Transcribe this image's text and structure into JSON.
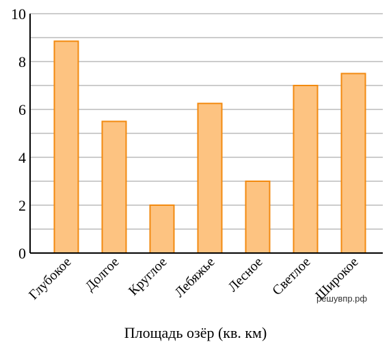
{
  "chart_data": {
    "type": "bar",
    "title": "Площадь озёр (кв. км)",
    "categories": [
      "Глубокое",
      "Долгое",
      "Круглое",
      "Лебяжье",
      "Лесное",
      "Светлое",
      "Широкое"
    ],
    "values": [
      8.85,
      5.5,
      2.0,
      6.25,
      3.0,
      7.0,
      7.5
    ],
    "ylim": [
      0,
      10
    ],
    "y_ticks": [
      "0",
      "2",
      "4",
      "6",
      "8",
      "10"
    ],
    "grid": true,
    "colors": {
      "bar_fill": "#fdc381",
      "bar_stroke": "#f28a10",
      "grid": "#999999"
    }
  },
  "watermark": "решувпр.рф"
}
